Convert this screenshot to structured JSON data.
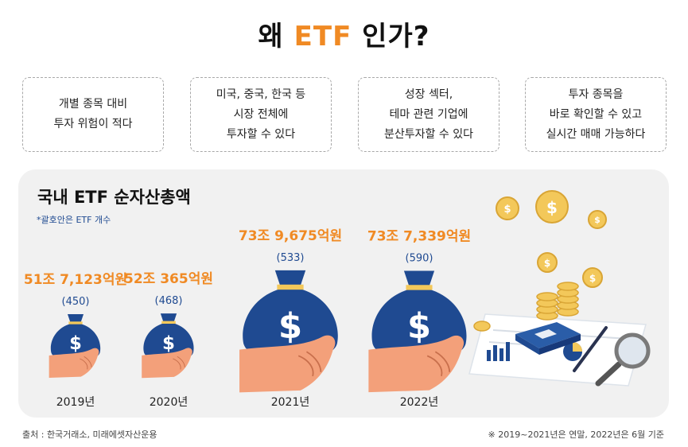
{
  "header": {
    "title_prefix": "왜 ",
    "title_accent": "ETF",
    "title_suffix": " 인가?"
  },
  "reasons": [
    {
      "text": "개별 종목 대비\n투자 위험이 적다"
    },
    {
      "text": "미국, 중국, 한국 등\n시장 전체에\n투자할 수 있다"
    },
    {
      "text": "성장 섹터,\n테마 관련 기업에\n분산투자할 수 있다"
    },
    {
      "text": "투자 종목을\n바로 확인할 수 있고\n실시간 매매 가능하다"
    }
  ],
  "chart_data": {
    "type": "bar",
    "title": "국내 ETF 순자산총액",
    "note": "*괄호안은 ETF 개수",
    "categories": [
      "2019년",
      "2020년",
      "2021년",
      "2022년"
    ],
    "values_label": [
      "51조 7,123억원",
      "52조 365억원",
      "73조 9,675억원",
      "73조 7,339억원"
    ],
    "counts_label": [
      "(450)",
      "(468)",
      "(533)",
      "(590)"
    ],
    "values": [
      517123,
      520365,
      739675,
      737339
    ],
    "counts": [
      450,
      468,
      533,
      590
    ],
    "unit": "억원"
  },
  "footer": {
    "source": "출처 : 한국거래소, 미래에셋자산운용",
    "basis": "※ 2019~2021년은 연말, 2022년은 6월 기준"
  },
  "colors": {
    "accent": "#f08a24",
    "bag": "#1f4a91",
    "hand": "#f3a07a",
    "coin": "#f3c85a",
    "count": "#1f4a91"
  }
}
